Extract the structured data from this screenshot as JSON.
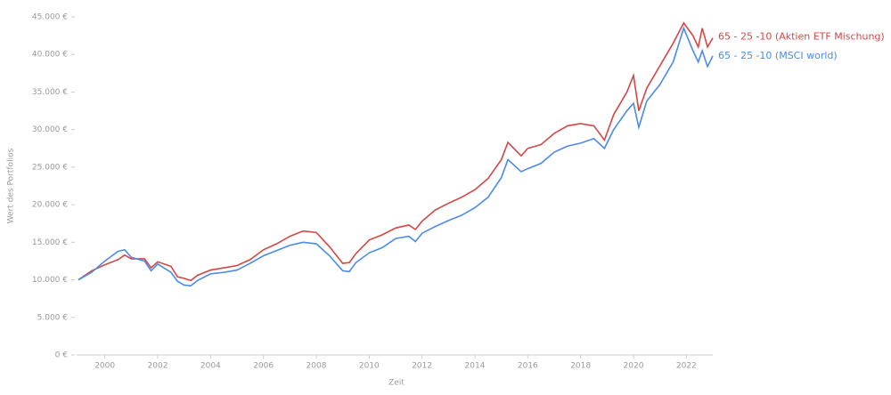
{
  "chart_data": {
    "type": "line",
    "x_label": "Zeit",
    "y_label": "Wert des Portfolios",
    "x": [
      1999.0,
      1999.5,
      2000.0,
      2000.5,
      2000.75,
      2001.0,
      2001.5,
      2001.75,
      2002.0,
      2002.5,
      2002.75,
      2003.0,
      2003.25,
      2003.5,
      2004.0,
      2004.5,
      2005.0,
      2005.5,
      2006.0,
      2006.5,
      2007.0,
      2007.5,
      2008.0,
      2008.5,
      2009.0,
      2009.25,
      2009.5,
      2010.0,
      2010.5,
      2011.0,
      2011.5,
      2011.75,
      2012.0,
      2012.5,
      2013.0,
      2013.5,
      2014.0,
      2014.5,
      2015.0,
      2015.25,
      2015.75,
      2016.0,
      2016.5,
      2017.0,
      2017.5,
      2018.0,
      2018.5,
      2018.9,
      2019.25,
      2019.75,
      2020.0,
      2020.2,
      2020.5,
      2021.0,
      2021.5,
      2021.9,
      2022.25,
      2022.45,
      2022.6,
      2022.8,
      2023.0
    ],
    "series": [
      {
        "name": "65 - 25 -10 (Aktien ETF Mischung)",
        "color": "#d64545",
        "values": [
          10000,
          11200,
          12000,
          12700,
          13300,
          12800,
          12800,
          11600,
          12400,
          11800,
          10400,
          10200,
          9900,
          10600,
          11300,
          11600,
          11900,
          12700,
          14000,
          14800,
          15800,
          16500,
          16300,
          14400,
          12200,
          12300,
          13500,
          15300,
          16000,
          16900,
          17300,
          16700,
          17800,
          19300,
          20200,
          21000,
          22000,
          23500,
          26000,
          28300,
          26500,
          27500,
          28000,
          29500,
          30500,
          30800,
          30500,
          28600,
          32000,
          35000,
          37200,
          32500,
          35500,
          38500,
          41500,
          44200,
          42500,
          41000,
          43500,
          41000,
          42200
        ]
      },
      {
        "name": "65 - 25 -10 (MSCI world)",
        "color": "#4a8be8",
        "values": [
          10000,
          11000,
          12500,
          13800,
          14000,
          13000,
          12500,
          11200,
          12100,
          11000,
          9800,
          9300,
          9200,
          9900,
          10800,
          11000,
          11300,
          12200,
          13200,
          13900,
          14600,
          15000,
          14800,
          13200,
          11200,
          11100,
          12300,
          13600,
          14300,
          15500,
          15800,
          15100,
          16200,
          17100,
          17900,
          18600,
          19600,
          21000,
          23600,
          26000,
          24400,
          24800,
          25500,
          27000,
          27800,
          28200,
          28800,
          27500,
          30000,
          32500,
          33500,
          30300,
          33800,
          36000,
          39000,
          43500,
          40500,
          39000,
          40500,
          38400,
          39800
        ]
      }
    ],
    "xlim": [
      1999,
      2023
    ],
    "xticks": [
      2000,
      2002,
      2004,
      2006,
      2008,
      2010,
      2012,
      2014,
      2016,
      2018,
      2020,
      2022
    ],
    "ylim": [
      0,
      45000
    ],
    "yticks": [
      {
        "value": 0,
        "label": "0 €"
      },
      {
        "value": 5000,
        "label": "5.000 €"
      },
      {
        "value": 10000,
        "label": "10.000 €"
      },
      {
        "value": 15000,
        "label": "15.000 €"
      },
      {
        "value": 20000,
        "label": "20.000 €"
      },
      {
        "value": 25000,
        "label": "25.000 €"
      },
      {
        "value": 30000,
        "label": "30.000 €"
      },
      {
        "value": 35000,
        "label": "35.000 €"
      },
      {
        "value": 40000,
        "label": "40.000 €"
      },
      {
        "value": 45000,
        "label": "45.000 €"
      }
    ]
  }
}
